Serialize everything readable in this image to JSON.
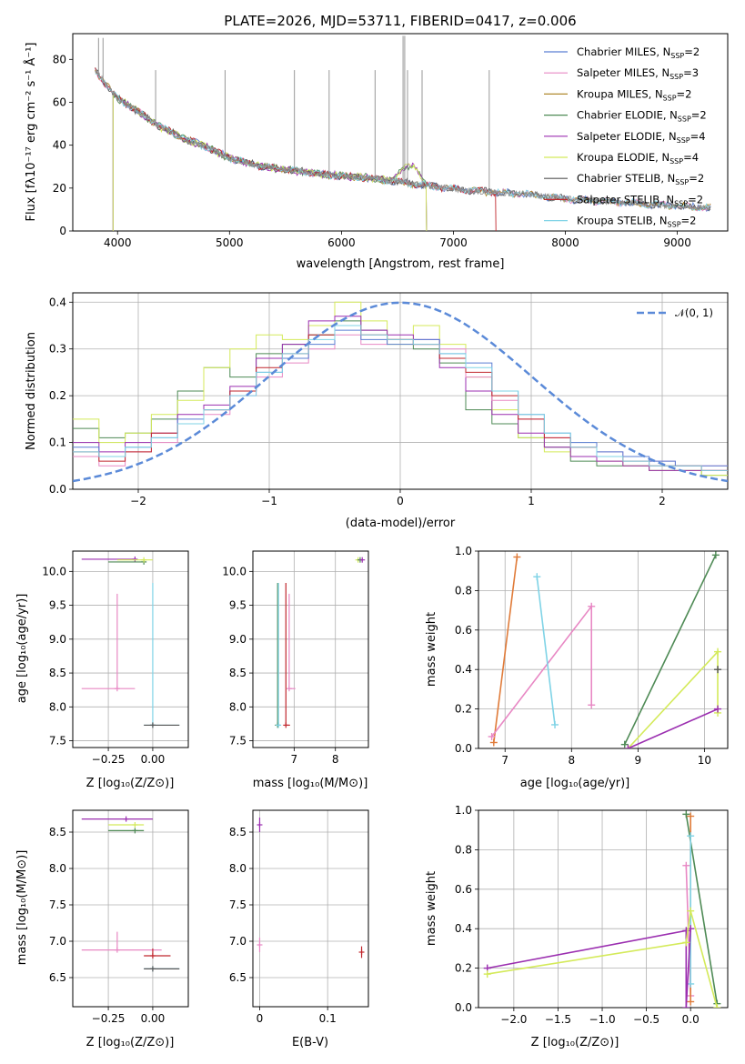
{
  "chart_data": [
    {
      "type": "line",
      "title": "PLATE=2026, MJD=53711, FIBERID=0417, z=0.006",
      "xlabel": "wavelength [Angstrom, rest frame]",
      "ylabel": "Flux [fλ10⁻¹⁷ erg cm⁻² s⁻¹ Å⁻¹]",
      "xlim": [
        3600,
        9450
      ],
      "ylim": [
        0,
        92
      ],
      "xticks": [
        4000,
        5000,
        6000,
        7000,
        8000,
        9000
      ],
      "yticks": [
        0,
        20,
        40,
        60,
        80
      ],
      "grid": false,
      "legend_loc": "upper right",
      "observed": {
        "x": [
          3800,
          3900,
          4000,
          4200,
          4400,
          4600,
          4800,
          5000,
          5300,
          5600,
          5900,
          6200,
          6500,
          6800,
          7100,
          7400,
          7700,
          8000,
          8300,
          8600,
          8900,
          9200
        ],
        "y": [
          75,
          68,
          62,
          55,
          48,
          43,
          39,
          34,
          30,
          28,
          26,
          25,
          23,
          21,
          19,
          18,
          17,
          15,
          14,
          13,
          12,
          11
        ]
      },
      "series": [
        {
          "name": "Chabrier MILES, N_SSP=2",
          "color": "#5b7fd3"
        },
        {
          "name": "Salpeter MILES, N_SSP=3",
          "color": "#e888c4"
        },
        {
          "name": "Kroupa MILES, N_SSP=2",
          "color": "#b08a2e"
        },
        {
          "name": "Chabrier ELODIE, N_SSP=2",
          "color": "#4e8a55"
        },
        {
          "name": "Salpeter ELODIE, N_SSP=4",
          "color": "#9b2fb0"
        },
        {
          "name": "Kroupa ELODIE, N_SSP=4",
          "color": "#d4ea5a"
        },
        {
          "name": "Chabrier STELIB, N_SSP=2",
          "color": "#555555"
        },
        {
          "name": "Salpeter STELIB, N_SSP=2",
          "color": "#c0272d"
        },
        {
          "name": "Kroupa STELIB, N_SSP=2",
          "color": "#7fd3e6"
        }
      ]
    },
    {
      "type": "line",
      "xlabel": "(data-model)/error",
      "ylabel": "Normed distribution",
      "xlim": [
        -2.5,
        2.5
      ],
      "ylim": [
        0,
        0.42
      ],
      "xticks": [
        -2,
        -1,
        0,
        1,
        2
      ],
      "yticks": [
        0.0,
        0.1,
        0.2,
        0.3,
        0.4
      ],
      "grid": true,
      "legend_loc": "upper right",
      "reference": {
        "name": "𝒩(0, 1)",
        "color": "#5b8ad8",
        "style": "dashed"
      },
      "hist_x": [
        -2.5,
        -2.3,
        -2.1,
        -1.9,
        -1.7,
        -1.5,
        -1.3,
        -1.1,
        -0.9,
        -0.7,
        -0.5,
        -0.3,
        -0.1,
        0.1,
        0.3,
        0.5,
        0.7,
        0.9,
        1.1,
        1.3,
        1.5,
        1.7,
        1.9,
        2.1,
        2.3
      ],
      "hist_series": [
        {
          "name": "Chabrier ELODIE",
          "color": "#4e8a55",
          "values": [
            0.13,
            0.11,
            0.12,
            0.15,
            0.21,
            0.26,
            0.24,
            0.29,
            0.31,
            0.33,
            0.36,
            0.34,
            0.32,
            0.3,
            0.27,
            0.17,
            0.14,
            0.11,
            0.09,
            0.06,
            0.05,
            0.05,
            0.04,
            0.04,
            0.03
          ]
        },
        {
          "name": "Kroupa ELODIE",
          "color": "#d4ea5a",
          "values": [
            0.15,
            0.1,
            0.12,
            0.16,
            0.19,
            0.26,
            0.3,
            0.33,
            0.32,
            0.35,
            0.4,
            0.36,
            0.31,
            0.35,
            0.31,
            0.24,
            0.17,
            0.11,
            0.08,
            0.07,
            0.06,
            0.05,
            0.04,
            0.04,
            0.03
          ]
        },
        {
          "name": "Salpeter ELODIE",
          "color": "#9b2fb0",
          "values": [
            0.1,
            0.08,
            0.1,
            0.12,
            0.16,
            0.18,
            0.22,
            0.28,
            0.31,
            0.36,
            0.37,
            0.34,
            0.33,
            0.32,
            0.26,
            0.21,
            0.16,
            0.12,
            0.09,
            0.07,
            0.06,
            0.05,
            0.04,
            0.04,
            0.04
          ]
        },
        {
          "name": "Salpeter MILES",
          "color": "#e888c4",
          "values": [
            0.07,
            0.05,
            0.08,
            0.1,
            0.14,
            0.16,
            0.2,
            0.24,
            0.27,
            0.3,
            0.33,
            0.31,
            0.32,
            0.31,
            0.3,
            0.24,
            0.19,
            0.15,
            0.11,
            0.09,
            0.08,
            0.07,
            0.06,
            0.05,
            0.05
          ]
        },
        {
          "name": "Chabrier MILES",
          "color": "#5b7fd3",
          "values": [
            0.09,
            0.07,
            0.09,
            0.11,
            0.15,
            0.17,
            0.21,
            0.25,
            0.28,
            0.31,
            0.34,
            0.32,
            0.31,
            0.32,
            0.29,
            0.27,
            0.21,
            0.16,
            0.12,
            0.1,
            0.08,
            0.07,
            0.06,
            0.05,
            0.05
          ]
        },
        {
          "name": "Salpeter STELIB",
          "color": "#c0272d",
          "values": [
            0.08,
            0.06,
            0.08,
            0.12,
            0.14,
            0.17,
            0.21,
            0.26,
            0.29,
            0.33,
            0.35,
            0.33,
            0.32,
            0.31,
            0.28,
            0.25,
            0.2,
            0.15,
            0.11,
            0.09,
            0.07,
            0.06,
            0.05,
            0.05,
            0.04
          ]
        },
        {
          "name": "Kroupa STELIB",
          "color": "#7fd3e6",
          "values": [
            0.08,
            0.07,
            0.09,
            0.11,
            0.14,
            0.17,
            0.2,
            0.25,
            0.29,
            0.32,
            0.35,
            0.33,
            0.32,
            0.31,
            0.29,
            0.26,
            0.21,
            0.16,
            0.12,
            0.09,
            0.07,
            0.06,
            0.05,
            0.05,
            0.04
          ]
        }
      ]
    },
    {
      "type": "scatter",
      "xlabel": "Z [log₁₀(Z/Z⊙)]",
      "ylabel": "age  [log₁₀(age/yr)]",
      "xlim": [
        -0.45,
        0.2
      ],
      "ylim": [
        7.4,
        10.3
      ],
      "xticks": [
        -0.25,
        0.0
      ],
      "xticklabels": [
        "−0.25",
        "0.00"
      ],
      "yticks": [
        7.5,
        8.0,
        8.5,
        9.0,
        9.5,
        10.0
      ],
      "grid": true,
      "points": [
        {
          "x": -0.1,
          "y": 10.18,
          "xerr": [
            0.3,
            0.0
          ],
          "yerr": [
            0,
            0
          ],
          "color": "#9b2fb0"
        },
        {
          "x": -0.05,
          "y": 10.14,
          "xerr": [
            0.2,
            0.0
          ],
          "yerr": [
            0,
            0
          ],
          "color": "#4e8a55"
        },
        {
          "x": -0.05,
          "y": 10.17,
          "xerr": [
            0.15,
            0.05
          ],
          "yerr": [
            0,
            0
          ],
          "color": "#d4ea5a"
        },
        {
          "x": -0.2,
          "y": 8.27,
          "xerr": [
            0.2,
            0.1
          ],
          "yerr": [
            0,
            1.4
          ],
          "color": "#e888c4"
        },
        {
          "x": 0.0,
          "y": 7.73,
          "xerr": [
            0.05,
            0.15
          ],
          "yerr": [
            0,
            2.1
          ],
          "color": "#7fd3e6"
        },
        {
          "x": 0.0,
          "y": 7.73,
          "xerr": [
            0.05,
            0.15
          ],
          "yerr": [
            0,
            0
          ],
          "color": "#555555"
        }
      ]
    },
    {
      "type": "scatter",
      "xlabel": "mass [log₁₀(M/M⊙)]",
      "xlim": [
        6.0,
        8.8
      ],
      "ylim": [
        7.4,
        10.3
      ],
      "xticks": [
        7,
        8
      ],
      "yticks": [
        7.5,
        8.0,
        8.5,
        9.0,
        9.5,
        10.0
      ],
      "grid": true,
      "points": [
        {
          "x": 6.6,
          "y": 7.73,
          "xerr": [
            0,
            0
          ],
          "yerr": [
            0,
            2.1
          ],
          "color": "#4e8a55"
        },
        {
          "x": 6.62,
          "y": 7.73,
          "xerr": [
            0,
            0
          ],
          "yerr": [
            0,
            2.1
          ],
          "color": "#7fd3e6"
        },
        {
          "x": 6.8,
          "y": 7.73,
          "xerr": [
            0,
            0.1
          ],
          "yerr": [
            0,
            2.1
          ],
          "color": "#c0272d"
        },
        {
          "x": 6.88,
          "y": 8.27,
          "xerr": [
            0,
            0.15
          ],
          "yerr": [
            0,
            1.4
          ],
          "color": "#e888c4"
        },
        {
          "x": 8.55,
          "y": 10.17,
          "xerr": [
            0,
            0.1
          ],
          "yerr": [
            0,
            0
          ],
          "color": "#d4ea5a"
        },
        {
          "x": 8.6,
          "y": 10.17,
          "xerr": [
            0,
            0
          ],
          "yerr": [
            0,
            0
          ],
          "color": "#4e8a55"
        },
        {
          "x": 8.65,
          "y": 10.17,
          "xerr": [
            0,
            0
          ],
          "yerr": [
            0,
            0
          ],
          "color": "#9b2fb0"
        }
      ]
    },
    {
      "type": "line",
      "xlabel": "age  [log₁₀(age/yr)]",
      "ylabel": "mass weight",
      "xlim": [
        6.6,
        10.35
      ],
      "ylim": [
        0,
        1.0
      ],
      "xticks": [
        7,
        8,
        9,
        10
      ],
      "yticks": [
        0.0,
        0.2,
        0.4,
        0.6,
        0.8,
        1.0
      ],
      "grid": true,
      "series": [
        {
          "color": "#e07b39",
          "x": [
            6.83,
            7.18
          ],
          "y": [
            0.03,
            0.97
          ]
        },
        {
          "color": "#e888c4",
          "x": [
            6.8,
            8.3,
            8.3
          ],
          "y": [
            0.06,
            0.72,
            0.22
          ]
        },
        {
          "color": "#7fd3e6",
          "x": [
            7.48,
            7.75
          ],
          "y": [
            0.87,
            0.12
          ]
        },
        {
          "color": "#4e8a55",
          "x": [
            8.8,
            10.17
          ],
          "y": [
            0.02,
            0.98
          ]
        },
        {
          "color": "#d4ea5a",
          "x": [
            8.85,
            10.2,
            10.2
          ],
          "y": [
            0.0,
            0.49,
            0.18
          ]
        },
        {
          "color": "#9b2fb0",
          "x": [
            8.85,
            10.2
          ],
          "y": [
            0.0,
            0.2
          ]
        },
        {
          "color": "#555555",
          "x": [
            10.2
          ],
          "y": [
            0.4
          ]
        }
      ]
    },
    {
      "type": "scatter",
      "xlabel": "Z [log₁₀(Z/Z⊙)]",
      "ylabel": "mass [log₁₀(M/M⊙)]",
      "xlim": [
        -0.45,
        0.2
      ],
      "ylim": [
        6.1,
        8.8
      ],
      "xticks": [
        -0.25,
        0.0
      ],
      "xticklabels": [
        "−0.25",
        "0.00"
      ],
      "yticks": [
        6.5,
        7.0,
        7.5,
        8.0,
        8.5
      ],
      "grid": true,
      "points": [
        {
          "x": -0.15,
          "y": 8.68,
          "xerr": [
            0.25,
            0.15
          ],
          "yerr": [
            0,
            0
          ],
          "color": "#9b2fb0"
        },
        {
          "x": -0.1,
          "y": 8.6,
          "xerr": [
            0.15,
            0.05
          ],
          "yerr": [
            0,
            0
          ],
          "color": "#d4ea5a"
        },
        {
          "x": -0.1,
          "y": 8.52,
          "xerr": [
            0.15,
            0.05
          ],
          "yerr": [
            0,
            0
          ],
          "color": "#4e8a55"
        },
        {
          "x": -0.2,
          "y": 6.88,
          "xerr": [
            0.2,
            0.25
          ],
          "yerr": [
            0,
            0.25
          ],
          "color": "#e888c4"
        },
        {
          "x": 0.0,
          "y": 6.8,
          "xerr": [
            0.05,
            0.1
          ],
          "yerr": [
            0,
            0.1
          ],
          "color": "#c0272d"
        },
        {
          "x": 0.0,
          "y": 6.62,
          "xerr": [
            0.05,
            0.15
          ],
          "yerr": [
            0,
            0
          ],
          "color": "#7fd3e6"
        },
        {
          "x": 0.0,
          "y": 6.62,
          "xerr": [
            0.05,
            0.15
          ],
          "yerr": [
            0,
            0
          ],
          "color": "#555555"
        }
      ]
    },
    {
      "type": "scatter",
      "xlabel": "E(B-V)",
      "xlim": [
        -0.01,
        0.16
      ],
      "ylim": [
        6.1,
        8.8
      ],
      "xticks": [
        0.0,
        0.1
      ],
      "yticks": [
        6.5,
        7.0,
        7.5,
        8.0,
        8.5
      ],
      "grid": true,
      "points": [
        {
          "x": 0.0,
          "y": 8.6,
          "xerr": [
            0,
            0
          ],
          "yerr": [
            0.1,
            0.1
          ],
          "color": "#9b2fb0"
        },
        {
          "x": 0.0,
          "y": 6.95,
          "xerr": [
            0,
            0
          ],
          "yerr": [
            0.1,
            0.1
          ],
          "color": "#e888c4"
        },
        {
          "x": 0.15,
          "y": 6.85,
          "xerr": [
            0,
            0
          ],
          "yerr": [
            0.08,
            0.08
          ],
          "color": "#c0272d"
        }
      ]
    },
    {
      "type": "line",
      "xlabel": "Z [log₁₀(Z/Z⊙)]",
      "ylabel": "mass weight",
      "xlim": [
        -2.4,
        0.42
      ],
      "ylim": [
        0,
        1.0
      ],
      "xticks": [
        -2.0,
        -1.5,
        -1.0,
        -0.5,
        0.0
      ],
      "xticklabels": [
        "−2.0",
        "−1.5",
        "−1.0",
        "−0.5",
        "0.0"
      ],
      "yticks": [
        0.0,
        0.2,
        0.4,
        0.6,
        0.8,
        1.0
      ],
      "grid": true,
      "series": [
        {
          "color": "#4e8a55",
          "x": [
            -0.05,
            0.3
          ],
          "y": [
            0.98,
            0.02
          ]
        },
        {
          "color": "#e888c4",
          "x": [
            -0.05,
            0.0
          ],
          "y": [
            0.72,
            0.06
          ]
        },
        {
          "color": "#e07b39",
          "x": [
            0.0,
            0.0
          ],
          "y": [
            0.97,
            0.03
          ]
        },
        {
          "color": "#7fd3e6",
          "x": [
            0.0,
            0.0
          ],
          "y": [
            0.87,
            0.12
          ]
        },
        {
          "color": "#9b2fb0",
          "x": [
            -2.3,
            -0.05,
            -0.05,
            0.0
          ],
          "y": [
            0.2,
            0.39,
            0.0,
            0.4
          ]
        },
        {
          "color": "#d4ea5a",
          "x": [
            -2.3,
            -0.05,
            0.0,
            0.3
          ],
          "y": [
            0.17,
            0.33,
            0.49,
            0.0
          ]
        }
      ]
    }
  ]
}
